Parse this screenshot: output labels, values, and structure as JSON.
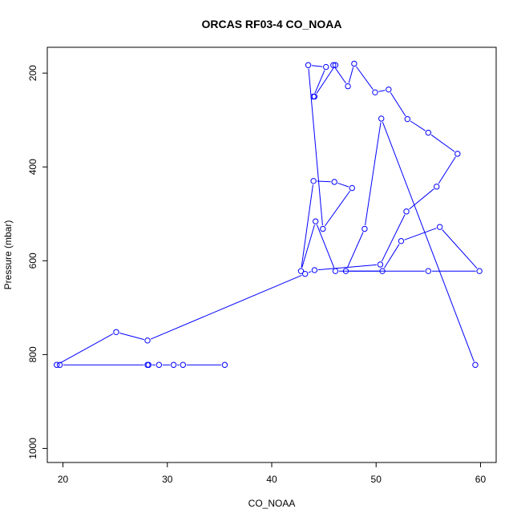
{
  "chart_data": {
    "type": "line",
    "title": "ORCAS RF03-4 CO_NOAA",
    "xlabel": "CO_NOAA",
    "ylabel": "Pressure (mbar)",
    "xlim": [
      18.5,
      61.5
    ],
    "ylim": [
      1030,
      145
    ],
    "y_reversed": true,
    "x_ticks": [
      20,
      30,
      40,
      50,
      60
    ],
    "x_tick_labels": [
      "20",
      "30",
      "40",
      "50",
      "60"
    ],
    "y_ticks": [
      200,
      400,
      600,
      800,
      1000
    ],
    "y_tick_labels": [
      "200",
      "400",
      "600",
      "800",
      "1000"
    ],
    "grid": false,
    "series": [
      {
        "color": "#0000ff",
        "marker": "open-circle",
        "x": [
          35.5,
          31.5,
          30.6,
          29.2,
          28.2,
          28.1,
          19.7,
          19.4,
          25.1,
          28.1,
          43.2,
          44.1,
          50.4,
          52.9,
          55.8,
          57.8,
          55.0,
          53.0,
          51.2,
          49.9,
          47.9,
          47.3,
          45.9,
          46.1,
          44.1,
          44.0,
          45.2,
          43.5,
          44.9,
          47.7,
          46.0,
          44.0,
          42.8,
          44.2,
          46.1,
          50.6,
          52.4,
          56.1,
          59.9,
          55.0,
          47.1,
          48.9,
          50.5,
          59.5
        ],
        "y": [
          822,
          822,
          822,
          822,
          822,
          822,
          822,
          822,
          752,
          770,
          628,
          620,
          608,
          495,
          442,
          372,
          327,
          298,
          235,
          241,
          180,
          228,
          183,
          183,
          250,
          250,
          187,
          183,
          532,
          445,
          432,
          430,
          622,
          516,
          622,
          622,
          558,
          528,
          622,
          622,
          622,
          532,
          297,
          822
        ]
      }
    ]
  }
}
